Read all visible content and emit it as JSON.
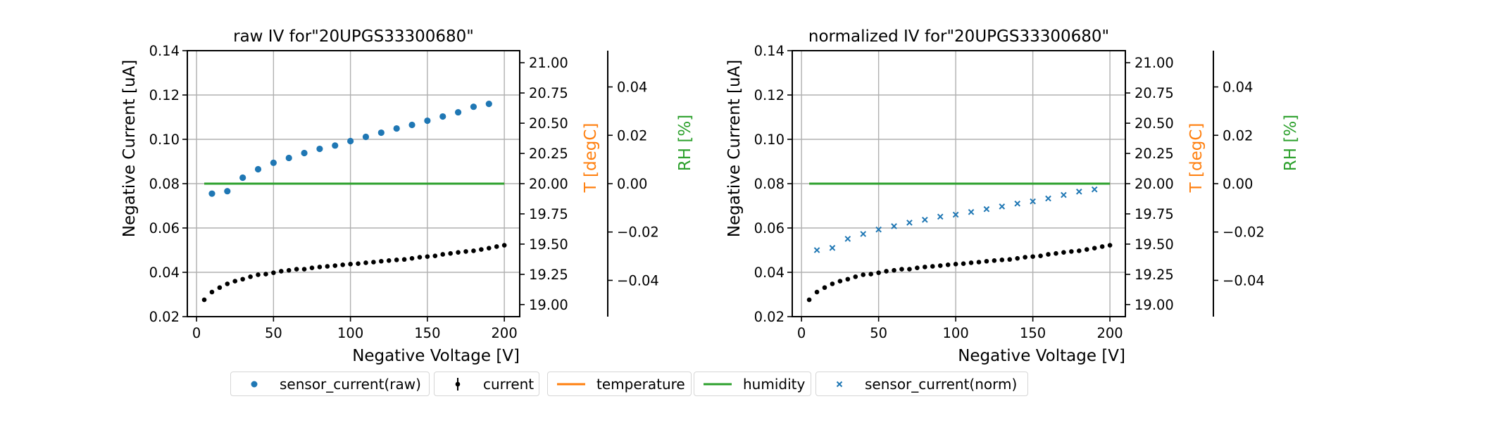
{
  "figure": {
    "legend": [
      {
        "label": "sensor_current(raw)",
        "marker": "dot",
        "color": "#1f77b4"
      },
      {
        "label": "current",
        "marker": "errorbar-dot",
        "color": "#000000"
      },
      {
        "label": "temperature",
        "marker": "line",
        "color": "#ff7f0e"
      },
      {
        "label": "humidity",
        "marker": "line",
        "color": "#2ca02c"
      },
      {
        "label": "sensor_current(norm)",
        "marker": "x",
        "color": "#1f77b4"
      }
    ]
  },
  "chart_data": [
    {
      "type": "scatter",
      "title": "raw IV for\"20UPGS33300680\"",
      "xlabel": "Negative Voltage [V]",
      "ylabel": "Negative Current [uA]",
      "xlim": [
        -6,
        210
      ],
      "ylim": [
        0.02,
        0.14
      ],
      "xticks": [
        "0",
        "50",
        "100",
        "150",
        "200"
      ],
      "xtick_values": [
        0,
        50,
        100,
        150,
        200
      ],
      "yticks": [
        "0.02",
        "0.04",
        "0.06",
        "0.08",
        "0.10",
        "0.12",
        "0.14"
      ],
      "ytick_values": [
        0.02,
        0.04,
        0.06,
        0.08,
        0.1,
        0.12,
        0.14
      ],
      "grid": true,
      "twin_axes": [
        {
          "label": "T [degC]",
          "color": "#ff7f0e",
          "ylim": [
            18.9,
            21.1
          ],
          "ticks": [
            "19.00",
            "19.25",
            "19.50",
            "19.75",
            "20.00",
            "20.25",
            "20.50",
            "20.75",
            "21.00"
          ],
          "tick_values": [
            19.0,
            19.25,
            19.5,
            19.75,
            20.0,
            20.25,
            20.5,
            20.75,
            21.0
          ]
        },
        {
          "label": "RH [%]",
          "color": "#2ca02c",
          "ylim": [
            -0.055,
            0.055
          ],
          "ticks": [
            "−0.04",
            "−0.02",
            "0.00",
            "0.02",
            "0.04"
          ],
          "tick_values": [
            -0.04,
            -0.02,
            0.0,
            0.02,
            0.04
          ]
        }
      ],
      "series": [
        {
          "name": "sensor_current(raw)",
          "marker": "dot",
          "color": "#1f77b4",
          "axis": "current",
          "x": [
            10,
            20,
            30,
            40,
            50,
            60,
            70,
            80,
            90,
            100,
            110,
            120,
            130,
            140,
            150,
            160,
            170,
            180,
            190
          ],
          "y": [
            0.0755,
            0.0766,
            0.0827,
            0.0865,
            0.0894,
            0.0916,
            0.0938,
            0.0957,
            0.0972,
            0.0992,
            0.1011,
            0.103,
            0.1049,
            0.1065,
            0.1084,
            0.1103,
            0.1122,
            0.1147,
            0.116
          ]
        },
        {
          "name": "current",
          "marker": "small-dot",
          "color": "#000000",
          "axis": "current",
          "x": [
            5,
            10,
            15,
            20,
            25,
            30,
            35,
            40,
            45,
            50,
            55,
            60,
            65,
            70,
            75,
            80,
            85,
            90,
            95,
            100,
            105,
            110,
            115,
            120,
            125,
            130,
            135,
            140,
            145,
            150,
            155,
            160,
            165,
            170,
            175,
            180,
            185,
            190,
            195,
            200
          ],
          "y": [
            0.0276,
            0.0311,
            0.0331,
            0.0348,
            0.036,
            0.0369,
            0.038,
            0.0389,
            0.0392,
            0.0398,
            0.0405,
            0.0409,
            0.0414,
            0.0414,
            0.042,
            0.0424,
            0.0427,
            0.043,
            0.0434,
            0.0437,
            0.0439,
            0.0443,
            0.0446,
            0.045,
            0.0453,
            0.0456,
            0.0458,
            0.0463,
            0.0468,
            0.0471,
            0.0474,
            0.0481,
            0.0485,
            0.049,
            0.0494,
            0.0497,
            0.0503,
            0.0509,
            0.0516,
            0.0522
          ]
        },
        {
          "name": "temperature",
          "marker": "line",
          "color": "#ff7f0e",
          "axis": "T",
          "x": [
            5,
            200
          ],
          "y": [
            20.0,
            20.0
          ]
        },
        {
          "name": "humidity",
          "marker": "line",
          "color": "#2ca02c",
          "axis": "RH",
          "x": [
            5,
            200
          ],
          "y": [
            0.0,
            0.0
          ]
        }
      ]
    },
    {
      "type": "scatter",
      "title": "normalized IV for\"20UPGS33300680\"",
      "xlabel": "Negative Voltage [V]",
      "ylabel": "Negative Current [uA]",
      "xlim": [
        -6,
        210
      ],
      "ylim": [
        0.02,
        0.14
      ],
      "xticks": [
        "0",
        "50",
        "100",
        "150",
        "200"
      ],
      "xtick_values": [
        0,
        50,
        100,
        150,
        200
      ],
      "yticks": [
        "0.02",
        "0.04",
        "0.06",
        "0.08",
        "0.10",
        "0.12",
        "0.14"
      ],
      "ytick_values": [
        0.02,
        0.04,
        0.06,
        0.08,
        0.1,
        0.12,
        0.14
      ],
      "grid": true,
      "twin_axes": [
        {
          "label": "T [degC]",
          "color": "#ff7f0e",
          "ylim": [
            18.9,
            21.1
          ],
          "ticks": [
            "19.00",
            "19.25",
            "19.50",
            "19.75",
            "20.00",
            "20.25",
            "20.50",
            "20.75",
            "21.00"
          ],
          "tick_values": [
            19.0,
            19.25,
            19.5,
            19.75,
            20.0,
            20.25,
            20.5,
            20.75,
            21.0
          ]
        },
        {
          "label": "RH [%]",
          "color": "#2ca02c",
          "ylim": [
            -0.055,
            0.055
          ],
          "ticks": [
            "−0.04",
            "−0.02",
            "0.00",
            "0.02",
            "0.04"
          ],
          "tick_values": [
            -0.04,
            -0.02,
            0.0,
            0.02,
            0.04
          ]
        }
      ],
      "series": [
        {
          "name": "sensor_current(norm)",
          "marker": "x",
          "color": "#1f77b4",
          "axis": "current",
          "x": [
            10,
            20,
            30,
            40,
            50,
            60,
            70,
            80,
            90,
            100,
            110,
            120,
            130,
            140,
            150,
            160,
            170,
            180,
            190
          ],
          "y": [
            0.05,
            0.051,
            0.0551,
            0.0573,
            0.0593,
            0.0608,
            0.0624,
            0.0637,
            0.0651,
            0.066,
            0.0672,
            0.0685,
            0.0697,
            0.071,
            0.072,
            0.0733,
            0.0749,
            0.0764,
            0.0774
          ]
        },
        {
          "name": "current",
          "marker": "small-dot",
          "color": "#000000",
          "axis": "current",
          "x": [
            5,
            10,
            15,
            20,
            25,
            30,
            35,
            40,
            45,
            50,
            55,
            60,
            65,
            70,
            75,
            80,
            85,
            90,
            95,
            100,
            105,
            110,
            115,
            120,
            125,
            130,
            135,
            140,
            145,
            150,
            155,
            160,
            165,
            170,
            175,
            180,
            185,
            190,
            195,
            200
          ],
          "y": [
            0.0276,
            0.0311,
            0.0331,
            0.0348,
            0.036,
            0.0369,
            0.038,
            0.0389,
            0.0392,
            0.0398,
            0.0405,
            0.0409,
            0.0414,
            0.0414,
            0.042,
            0.0424,
            0.0427,
            0.043,
            0.0434,
            0.0437,
            0.0439,
            0.0443,
            0.0446,
            0.045,
            0.0453,
            0.0456,
            0.0458,
            0.0463,
            0.0468,
            0.0471,
            0.0474,
            0.0481,
            0.0485,
            0.049,
            0.0494,
            0.0497,
            0.0503,
            0.0509,
            0.0516,
            0.0522
          ]
        },
        {
          "name": "temperature",
          "marker": "line",
          "color": "#ff7f0e",
          "axis": "T",
          "x": [
            5,
            200
          ],
          "y": [
            20.0,
            20.0
          ]
        },
        {
          "name": "humidity",
          "marker": "line",
          "color": "#2ca02c",
          "axis": "RH",
          "x": [
            5,
            200
          ],
          "y": [
            0.0,
            0.0
          ]
        }
      ]
    }
  ]
}
